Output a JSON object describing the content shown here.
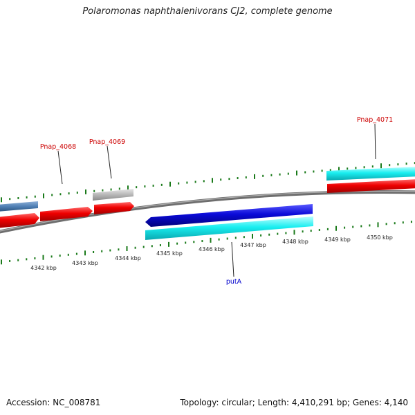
{
  "title": "Polaromonas naphthalenivorans CJ2, complete genome",
  "footer": {
    "accession": "Accession: NC_008781",
    "summary": "Topology: circular; Length: 4,410,291 bp; Genes: 4,140"
  },
  "scale_labels": [
    "4342 kbp",
    "4343 kbp",
    "4344 kbp",
    "4345 kbp",
    "4346 kbp",
    "4347 kbp",
    "4348 kbp",
    "4349 kbp",
    "4350 kbp"
  ],
  "gene_labels": [
    {
      "text": "Pnap_4068",
      "color": "#cc0000"
    },
    {
      "text": "Pnap_4069",
      "color": "#cc0000"
    },
    {
      "text": "Pnap_4071",
      "color": "#cc0000"
    },
    {
      "text": "putA",
      "color": "#0000cc"
    }
  ],
  "colors": {
    "backbone": "#888888",
    "tick": "#1a7a1a",
    "red_feature": "#ee0000",
    "blue_feature": "#0a0ad8",
    "cyan_feature": "#19eef0",
    "steel_feature": "#4f7fb4",
    "gray_feature": "#b8b8b8"
  }
}
